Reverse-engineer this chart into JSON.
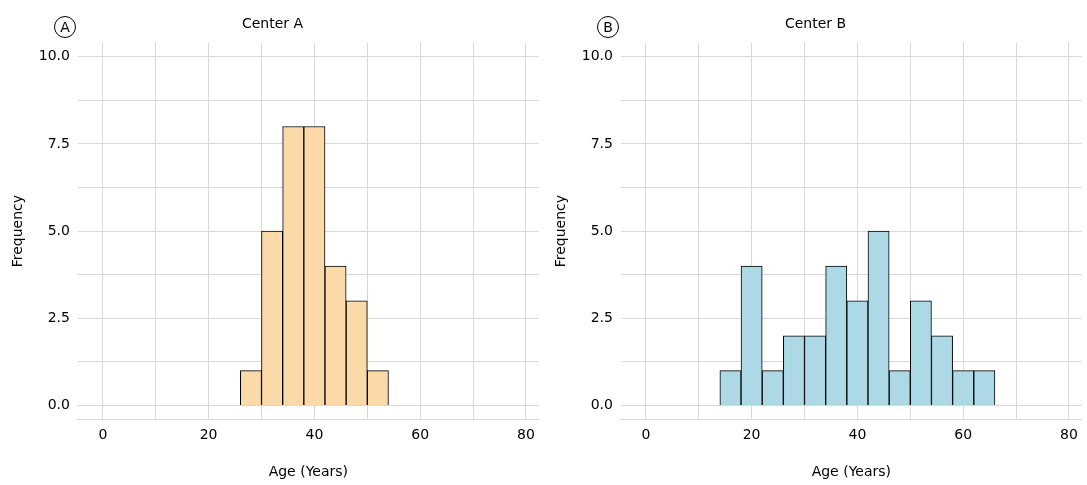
{
  "chart_data": [
    {
      "type": "histogram",
      "title": "Center A",
      "xlabel": "Age (Years)",
      "ylabel": "Frequency",
      "annotations": [
        "A"
      ],
      "bins": [
        26,
        30,
        34,
        38,
        42,
        46,
        50,
        54
      ],
      "values": [
        1,
        5,
        8,
        8,
        4,
        3,
        1
      ],
      "color": "#fbd9a8",
      "xlim": [
        -4.7,
        82.4
      ],
      "xticks": [
        0,
        {
          "value": 10,
          "label": null
        },
        20,
        {
          "value": 30,
          "label": null
        },
        40,
        {
          "value": 50,
          "label": null
        },
        60,
        {
          "value": 70,
          "label": null
        },
        80
      ],
      "ylim": [
        -0.4,
        10.4
      ],
      "yticks": [
        {
          "value": 0,
          "label": "0.0"
        },
        {
          "value": 1.25,
          "label": null
        },
        {
          "value": 2.5,
          "label": "2.5"
        },
        {
          "value": 3.75,
          "label": null
        },
        {
          "value": 5,
          "label": "5.0"
        },
        {
          "value": 6.25,
          "label": null
        },
        {
          "value": 7.5,
          "label": "7.5"
        },
        {
          "value": 8.75,
          "label": null
        },
        {
          "value": 10,
          "label": "10.0"
        }
      ],
      "grid": true
    },
    {
      "type": "histogram",
      "title": "Center B",
      "xlabel": "Age (Years)",
      "ylabel": "Frequency",
      "annotations": [
        "B"
      ],
      "bins": [
        14,
        18,
        22,
        26,
        30,
        34,
        38,
        42,
        46,
        50,
        54,
        58,
        62,
        66
      ],
      "values": [
        1,
        4,
        1,
        2,
        2,
        4,
        3,
        5,
        1,
        3,
        2,
        1,
        1
      ],
      "color": "#add8e6",
      "xlim": [
        -4.7,
        82.4
      ],
      "xticks": [
        0,
        {
          "value": 10,
          "label": null
        },
        20,
        {
          "value": 30,
          "label": null
        },
        40,
        {
          "value": 50,
          "label": null
        },
        60,
        {
          "value": 70,
          "label": null
        },
        80
      ],
      "ylim": [
        -0.4,
        10.4
      ],
      "yticks": [
        {
          "value": 0,
          "label": "0.0"
        },
        {
          "value": 1.25,
          "label": null
        },
        2.5,
        {
          "value": 3.75,
          "label": null
        },
        {
          "value": 5,
          "label": "5.0"
        },
        {
          "value": 6.25,
          "label": null
        },
        7.5,
        {
          "value": 8.75,
          "label": null
        },
        {
          "value": 10,
          "label": "10.0"
        }
      ],
      "grid": true
    }
  ]
}
